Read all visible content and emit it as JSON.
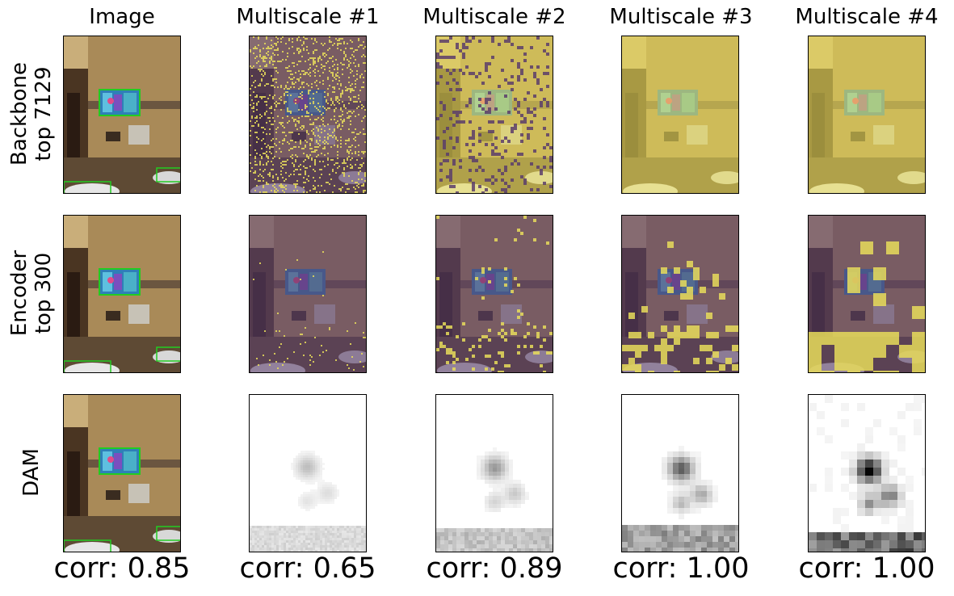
{
  "column_titles": [
    "Image",
    "Multiscale #1",
    "Multiscale #2",
    "Multiscale #3",
    "Multiscale #4"
  ],
  "row_labels": [
    {
      "line1": "Backbone",
      "line2": "top 7129"
    },
    {
      "line1": "Encoder",
      "line2": "top 300"
    },
    {
      "line1": "DAM",
      "line2": ""
    }
  ],
  "corr_labels": [
    "corr: 0.85",
    "corr: 0.65",
    "corr: 0.89",
    "corr: 1.00",
    "corr: 1.00"
  ],
  "colors": {
    "overlay_purple": "#5a3d6b",
    "overlay_yellow": "#e8dc5a",
    "box_green": "#22cc22"
  },
  "overlay_coverage": {
    "backbone": [
      0.15,
      0.85,
      1.0,
      1.0
    ],
    "encoder": [
      0.01,
      0.05,
      0.12,
      0.25
    ]
  }
}
